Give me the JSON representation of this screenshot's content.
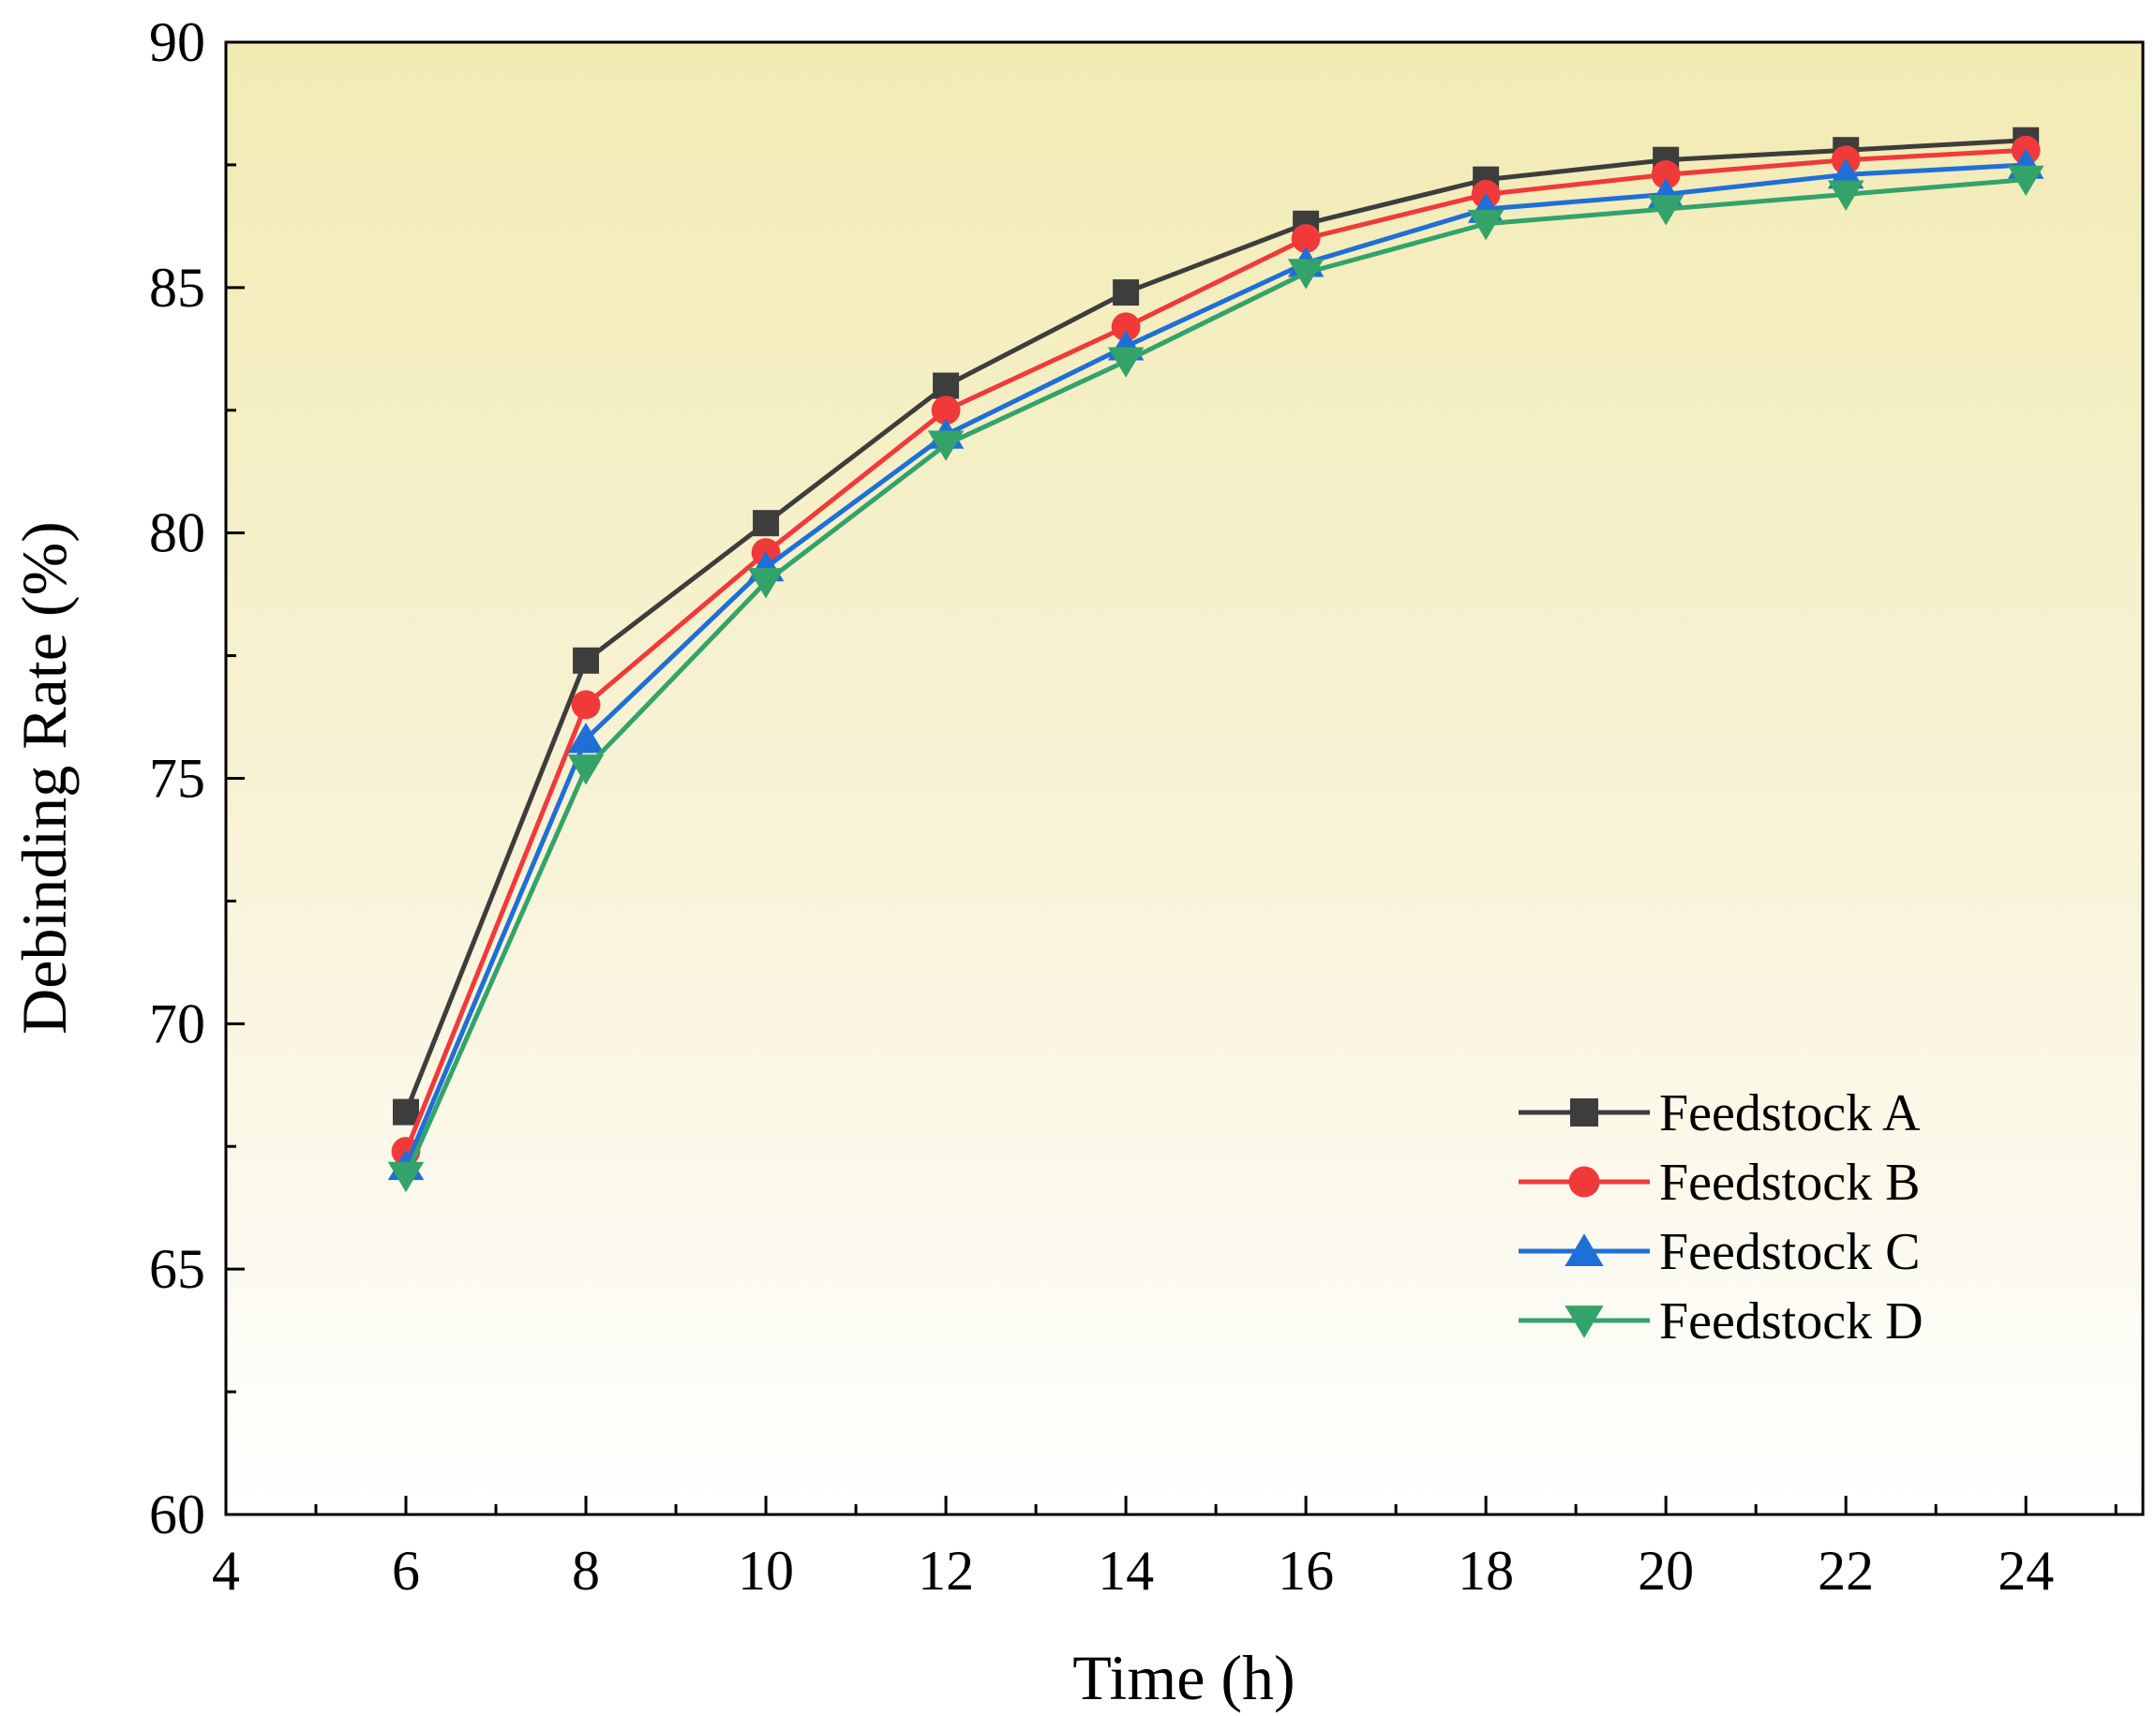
{
  "chart_data": {
    "type": "line",
    "title": "",
    "xlabel": "Time (h)",
    "ylabel": "Debinding Rate (%)",
    "xlim": [
      4,
      25.3
    ],
    "ylim": [
      60,
      90
    ],
    "xticks": [
      4,
      6,
      8,
      10,
      12,
      14,
      16,
      18,
      20,
      22,
      24
    ],
    "yticks": [
      60,
      65,
      70,
      75,
      80,
      85,
      90
    ],
    "grid": false,
    "legend_position": "bottom-right",
    "x": [
      6,
      8,
      10,
      12,
      14,
      16,
      18,
      20,
      22,
      24
    ],
    "series": [
      {
        "name": "Feedstock A",
        "color": "#3d3d3d",
        "marker": "square",
        "values": [
          68.2,
          77.4,
          80.2,
          83.0,
          84.9,
          86.3,
          87.2,
          87.6,
          87.8,
          88.0
        ]
      },
      {
        "name": "Feedstock B",
        "color": "#f03a3a",
        "marker": "circle",
        "values": [
          67.4,
          76.5,
          79.6,
          82.5,
          84.2,
          86.0,
          86.9,
          87.3,
          87.6,
          87.8
        ]
      },
      {
        "name": "Feedstock C",
        "color": "#1f6fd6",
        "marker": "triangle-up",
        "values": [
          67.1,
          75.8,
          79.3,
          82.0,
          83.8,
          85.5,
          86.6,
          86.9,
          87.3,
          87.5
        ]
      },
      {
        "name": "Feedstock D",
        "color": "#33a36a",
        "marker": "triangle-down",
        "values": [
          66.9,
          75.2,
          79.0,
          81.8,
          83.5,
          85.3,
          86.3,
          86.6,
          86.9,
          87.2
        ]
      }
    ]
  }
}
